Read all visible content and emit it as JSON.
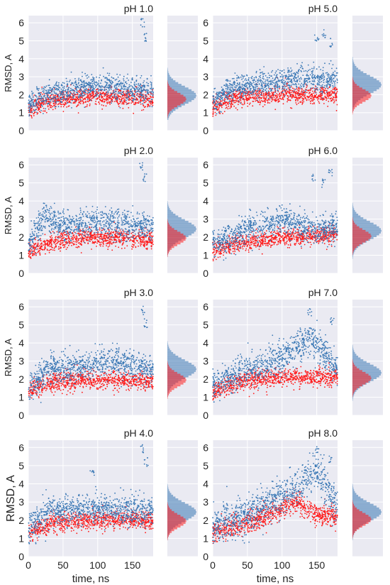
{
  "figure": {
    "x_axis_label": "time, ns",
    "y_axis_label": "RMSD, A",
    "series_colors": {
      "red_series": "#ff1a1a",
      "blue_series": "#3a78b5"
    },
    "panel_background": "#eaeaf2",
    "grid_color": "#ffffff"
  },
  "chart_data": [
    {
      "type": "scatter",
      "title": "pH 1.0",
      "xlim": [
        0,
        180
      ],
      "ylim": [
        0,
        6.4
      ],
      "xticks": [
        0,
        50,
        100,
        150
      ],
      "yticks": [
        0,
        1,
        2,
        3,
        4,
        5,
        6
      ],
      "series": [
        {
          "color": "#ff1a1a",
          "baseline": [
            [
              0,
              1.2
            ],
            [
              20,
              1.6
            ],
            [
              60,
              1.8
            ],
            [
              100,
              1.9
            ],
            [
              180,
              1.8
            ]
          ],
          "spread": 0.25
        },
        {
          "color": "#3a78b5",
          "baseline": [
            [
              0,
              1.4
            ],
            [
              20,
              1.9
            ],
            [
              60,
              2.3
            ],
            [
              100,
              2.5
            ],
            [
              180,
              2.2
            ]
          ],
          "spread": 0.35
        }
      ],
      "outliers": [
        {
          "x": 165,
          "y": 6.0
        },
        {
          "x": 168,
          "y": 5.2
        }
      ],
      "hist": {
        "red_peak": 1.7,
        "blue_peak": 1.9
      }
    },
    {
      "type": "scatter",
      "title": "pH 5.0",
      "xlim": [
        0,
        180
      ],
      "ylim": [
        0,
        6.4
      ],
      "xticks": [
        0,
        50,
        100,
        150
      ],
      "yticks": [
        0,
        1,
        2,
        3,
        4,
        5,
        6
      ],
      "series": [
        {
          "color": "#ff1a1a",
          "baseline": [
            [
              0,
              1.3
            ],
            [
              30,
              1.8
            ],
            [
              80,
              2.0
            ],
            [
              180,
              2.0
            ]
          ],
          "spread": 0.25
        },
        {
          "color": "#3a78b5",
          "baseline": [
            [
              0,
              1.6
            ],
            [
              30,
              2.4
            ],
            [
              80,
              2.6
            ],
            [
              120,
              2.9
            ],
            [
              180,
              2.8
            ]
          ],
          "spread": 0.35
        }
      ],
      "outliers": [
        {
          "x": 150,
          "y": 5.1
        },
        {
          "x": 160,
          "y": 5.4
        },
        {
          "x": 170,
          "y": 4.9
        }
      ],
      "hist": {
        "red_peak": 1.9,
        "blue_peak": 2.5
      }
    },
    {
      "type": "scatter",
      "title": "pH 2.0",
      "xlim": [
        0,
        180
      ],
      "ylim": [
        0,
        6.4
      ],
      "xticks": [
        0,
        50,
        100,
        150
      ],
      "yticks": [
        0,
        1,
        2,
        3,
        4,
        5,
        6
      ],
      "series": [
        {
          "color": "#ff1a1a",
          "baseline": [
            [
              0,
              1.2
            ],
            [
              30,
              1.7
            ],
            [
              80,
              2.0
            ],
            [
              180,
              1.9
            ]
          ],
          "spread": 0.25
        },
        {
          "color": "#3a78b5",
          "baseline": [
            [
              0,
              1.5
            ],
            [
              25,
              3.2
            ],
            [
              50,
              2.6
            ],
            [
              100,
              2.8
            ],
            [
              180,
              2.5
            ]
          ],
          "spread": 0.4
        }
      ],
      "outliers": [
        {
          "x": 163,
          "y": 5.9
        },
        {
          "x": 168,
          "y": 5.3
        }
      ],
      "hist": {
        "red_peak": 1.9,
        "blue_peak": 2.4
      }
    },
    {
      "type": "scatter",
      "title": "pH 6.0",
      "xlim": [
        0,
        180
      ],
      "ylim": [
        0,
        6.4
      ],
      "xticks": [
        0,
        50,
        100,
        150
      ],
      "yticks": [
        0,
        1,
        2,
        3,
        4,
        5,
        6
      ],
      "series": [
        {
          "color": "#ff1a1a",
          "baseline": [
            [
              0,
              1.3
            ],
            [
              40,
              1.7
            ],
            [
              100,
              2.0
            ],
            [
              180,
              2.1
            ]
          ],
          "spread": 0.25
        },
        {
          "color": "#3a78b5",
          "baseline": [
            [
              0,
              1.6
            ],
            [
              40,
              2.3
            ],
            [
              100,
              3.0
            ],
            [
              130,
              2.5
            ],
            [
              180,
              2.5
            ]
          ],
          "spread": 0.4
        }
      ],
      "outliers": [
        {
          "x": 145,
          "y": 5.3
        },
        {
          "x": 160,
          "y": 5.0
        },
        {
          "x": 170,
          "y": 5.6
        }
      ],
      "hist": {
        "red_peak": 2.0,
        "blue_peak": 2.3
      }
    },
    {
      "type": "scatter",
      "title": "pH 3.0",
      "xlim": [
        0,
        180
      ],
      "ylim": [
        0,
        6.4
      ],
      "xticks": [
        0,
        50,
        100,
        150
      ],
      "yticks": [
        0,
        1,
        2,
        3,
        4,
        5,
        6
      ],
      "series": [
        {
          "color": "#ff1a1a",
          "baseline": [
            [
              0,
              1.3
            ],
            [
              30,
              1.8
            ],
            [
              80,
              2.0
            ],
            [
              180,
              1.9
            ]
          ],
          "spread": 0.25
        },
        {
          "color": "#3a78b5",
          "baseline": [
            [
              0,
              1.5
            ],
            [
              30,
              2.6
            ],
            [
              80,
              2.7
            ],
            [
              120,
              3.0
            ],
            [
              180,
              2.5
            ]
          ],
          "spread": 0.4
        }
      ],
      "outliers": [
        {
          "x": 165,
          "y": 5.8
        },
        {
          "x": 170,
          "y": 5.1
        }
      ],
      "hist": {
        "red_peak": 1.9,
        "blue_peak": 2.5
      }
    },
    {
      "type": "scatter",
      "title": "pH 7.0",
      "xlim": [
        0,
        180
      ],
      "ylim": [
        0,
        6.4
      ],
      "xticks": [
        0,
        50,
        100,
        150
      ],
      "yticks": [
        0,
        1,
        2,
        3,
        4,
        5,
        6
      ],
      "series": [
        {
          "color": "#ff1a1a",
          "baseline": [
            [
              0,
              1.3
            ],
            [
              40,
              1.9
            ],
            [
              100,
              2.1
            ],
            [
              180,
              2.1
            ]
          ],
          "spread": 0.25
        },
        {
          "color": "#3a78b5",
          "baseline": [
            [
              0,
              1.6
            ],
            [
              40,
              2.4
            ],
            [
              100,
              3.2
            ],
            [
              140,
              4.3
            ],
            [
              180,
              2.5
            ]
          ],
          "spread": 0.45
        }
      ],
      "outliers": [
        {
          "x": 140,
          "y": 5.7
        },
        {
          "x": 172,
          "y": 5.2
        }
      ],
      "hist": {
        "red_peak": 2.0,
        "blue_peak": 2.3
      }
    },
    {
      "type": "scatter",
      "title": "pH 4.0",
      "xlim": [
        0,
        180
      ],
      "ylim": [
        0,
        6.4
      ],
      "xticks": [
        0,
        50,
        100,
        150
      ],
      "yticks": [
        0,
        1,
        2,
        3,
        4,
        5,
        6
      ],
      "series": [
        {
          "color": "#ff1a1a",
          "baseline": [
            [
              0,
              1.2
            ],
            [
              30,
              1.8
            ],
            [
              80,
              2.0
            ],
            [
              180,
              2.0
            ]
          ],
          "spread": 0.25
        },
        {
          "color": "#3a78b5",
          "baseline": [
            [
              0,
              1.5
            ],
            [
              30,
              2.6
            ],
            [
              100,
              2.6
            ],
            [
              180,
              2.5
            ]
          ],
          "spread": 0.4
        }
      ],
      "outliers": [
        {
          "x": 165,
          "y": 5.9
        },
        {
          "x": 170,
          "y": 5.2
        },
        {
          "x": 92,
          "y": 4.6
        }
      ],
      "hist": {
        "red_peak": 1.9,
        "blue_peak": 2.4
      }
    },
    {
      "type": "scatter",
      "title": "pH 8.0",
      "xlim": [
        0,
        180
      ],
      "ylim": [
        0,
        6.4
      ],
      "xticks": [
        0,
        50,
        100,
        150
      ],
      "yticks": [
        0,
        1,
        2,
        3,
        4,
        5,
        6
      ],
      "series": [
        {
          "color": "#ff1a1a",
          "baseline": [
            [
              0,
              1.3
            ],
            [
              60,
              2.0
            ],
            [
              120,
              3.0
            ],
            [
              150,
              2.3
            ],
            [
              180,
              2.2
            ]
          ],
          "spread": 0.3
        },
        {
          "color": "#3a78b5",
          "baseline": [
            [
              0,
              1.6
            ],
            [
              60,
              2.5
            ],
            [
              120,
              3.8
            ],
            [
              150,
              4.8
            ],
            [
              180,
              2.6
            ]
          ],
          "spread": 0.5
        }
      ],
      "outliers": [
        {
          "x": 150,
          "y": 5.9
        },
        {
          "x": 170,
          "y": 5.4
        }
      ],
      "hist": {
        "red_peak": 2.0,
        "blue_peak": 2.4
      }
    }
  ]
}
